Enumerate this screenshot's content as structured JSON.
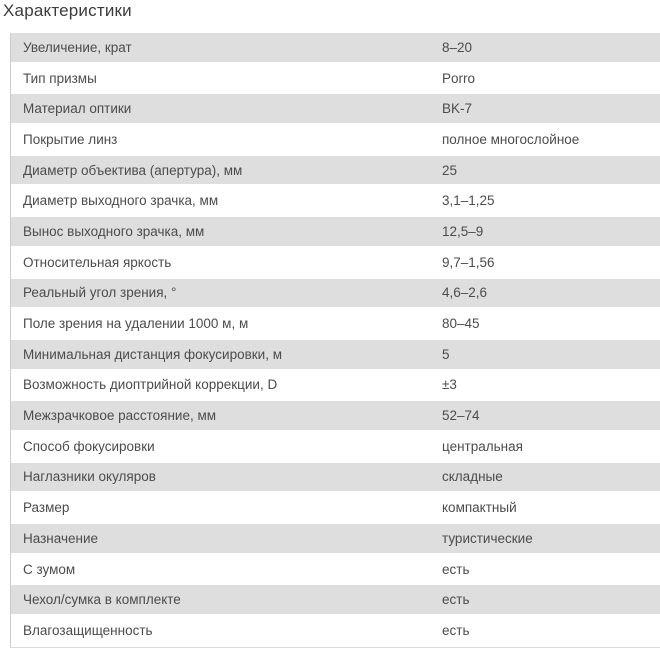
{
  "page": {
    "title": "Характеристики"
  },
  "colors": {
    "row_alt_bg": "#dedede",
    "row_bg": "#ffffff",
    "text": "#4c4c4c",
    "title_text": "#3c3c3c",
    "table_left_border": "#cccccc",
    "table_bottom_border": "#d9d9d9"
  },
  "table": {
    "rows": [
      {
        "label": "Увеличение, крат",
        "value": "8–20"
      },
      {
        "label": "Тип призмы",
        "value": "Porro"
      },
      {
        "label": "Материал оптики",
        "value": "BK-7"
      },
      {
        "label": "Покрытие линз",
        "value": "полное многослойное"
      },
      {
        "label": "Диаметр объектива (апертура), мм",
        "value": "25"
      },
      {
        "label": "Диаметр выходного зрачка, мм",
        "value": "3,1–1,25"
      },
      {
        "label": "Вынос выходного зрачка, мм",
        "value": "12,5–9"
      },
      {
        "label": "Относительная яркость",
        "value": "9,7–1,56"
      },
      {
        "label": "Реальный угол зрения, °",
        "value": "4,6–2,6"
      },
      {
        "label": "Поле зрения на удалении 1000 м, м",
        "value": "80–45"
      },
      {
        "label": "Минимальная дистанция фокусировки, м",
        "value": "5"
      },
      {
        "label": "Возможность диоптрийной коррекции, D",
        "value": "±3"
      },
      {
        "label": "Межзрачковое расстояние, мм",
        "value": "52–74"
      },
      {
        "label": "Способ фокусировки",
        "value": "центральная"
      },
      {
        "label": "Наглазники окуляров",
        "value": "складные"
      },
      {
        "label": "Размер",
        "value": "компактный"
      },
      {
        "label": "Назначение",
        "value": "туристические"
      },
      {
        "label": "С зумом",
        "value": "есть"
      },
      {
        "label": "Чехол/сумка в комплекте",
        "value": "есть"
      },
      {
        "label": "Влагозащищенность",
        "value": "есть"
      }
    ]
  }
}
